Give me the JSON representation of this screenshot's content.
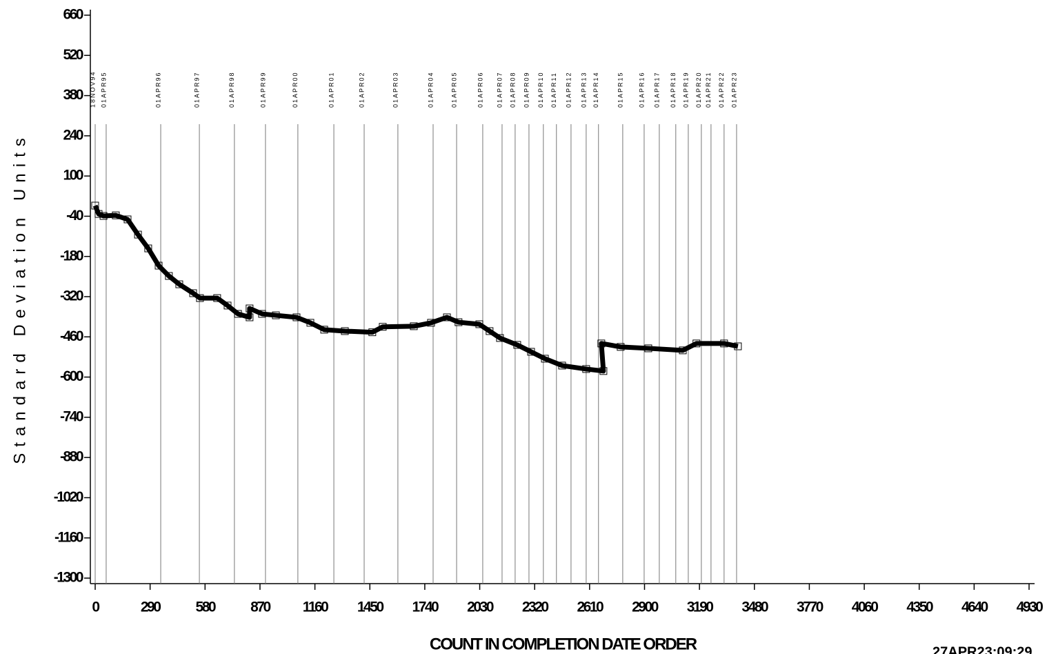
{
  "chart_data": {
    "type": "line",
    "y_label": "Standard Deviation Units",
    "x_label": "COUNT IN COMPLETION DATE ORDER",
    "footnote": "27APR23:09:29",
    "color": "#000000",
    "xlim": [
      0,
      4930
    ],
    "xticks": [
      0,
      290,
      580,
      870,
      1160,
      1450,
      1740,
      2030,
      2320,
      2610,
      2900,
      3190,
      3480,
      3770,
      4060,
      4350,
      4640,
      4930
    ],
    "ylim": [
      -1300,
      660
    ],
    "yticks": [
      660,
      520,
      380,
      240,
      100,
      -40,
      -180,
      -320,
      -460,
      -600,
      -740,
      -880,
      -1020,
      -1160,
      -1300
    ],
    "x": [
      0,
      18,
      44,
      109,
      171,
      226,
      280,
      335,
      389,
      444,
      517,
      553,
      644,
      699,
      754,
      815,
      815,
      881,
      954,
      1063,
      1136,
      1209,
      1318,
      1463,
      1518,
      1682,
      1773,
      1857,
      1918,
      2028,
      2082,
      2137,
      2228,
      2301,
      2374,
      2465,
      2592,
      2683,
      2672,
      2774,
      2920,
      3102,
      3174,
      3320,
      3393
    ],
    "values": [
      -3,
      -32,
      -39,
      -37,
      -51,
      -104,
      -152,
      -212,
      -248,
      -277,
      -308,
      -325,
      -325,
      -351,
      -380,
      -392,
      -361,
      -380,
      -385,
      -392,
      -411,
      -435,
      -440,
      -444,
      -425,
      -423,
      -411,
      -392,
      -409,
      -416,
      -440,
      -464,
      -488,
      -512,
      -536,
      -560,
      -572,
      -579,
      -483,
      -495,
      -500,
      -507,
      -483,
      -483,
      -493
    ],
    "reference_lines": [
      {
        "x": 0,
        "label": "18NOV94"
      },
      {
        "x": 58,
        "label": "01APR95"
      },
      {
        "x": 346,
        "label": "01APR96"
      },
      {
        "x": 550,
        "label": "01APR97"
      },
      {
        "x": 735,
        "label": "01APR98"
      },
      {
        "x": 899,
        "label": "01APR99"
      },
      {
        "x": 1070,
        "label": "01APR00"
      },
      {
        "x": 1260,
        "label": "01APR01"
      },
      {
        "x": 1420,
        "label": "01APR02"
      },
      {
        "x": 1598,
        "label": "01APR03"
      },
      {
        "x": 1784,
        "label": "01APR04"
      },
      {
        "x": 1908,
        "label": "01APR05"
      },
      {
        "x": 2046,
        "label": "01APR06"
      },
      {
        "x": 2148,
        "label": "01APR07"
      },
      {
        "x": 2217,
        "label": "01APR08"
      },
      {
        "x": 2290,
        "label": "01APR09"
      },
      {
        "x": 2366,
        "label": "01APR10"
      },
      {
        "x": 2435,
        "label": "01APR11"
      },
      {
        "x": 2512,
        "label": "01APR12"
      },
      {
        "x": 2592,
        "label": "01APR13"
      },
      {
        "x": 2657,
        "label": "01APR14"
      },
      {
        "x": 2785,
        "label": "01APR15"
      },
      {
        "x": 2898,
        "label": "01APR16"
      },
      {
        "x": 2978,
        "label": "01APR17"
      },
      {
        "x": 3065,
        "label": "01APR18"
      },
      {
        "x": 3131,
        "label": "01APR19"
      },
      {
        "x": 3200,
        "label": "01APR20"
      },
      {
        "x": 3251,
        "label": "01APR21"
      },
      {
        "x": 3320,
        "label": "01APR22"
      },
      {
        "x": 3386,
        "label": "01APR23"
      }
    ]
  }
}
